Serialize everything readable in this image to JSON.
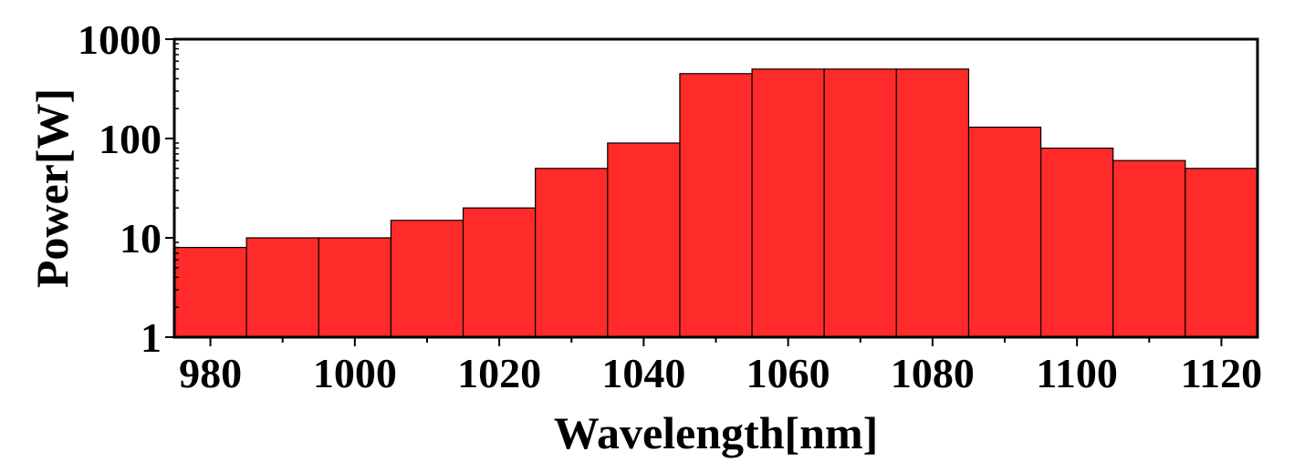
{
  "chart_data": {
    "type": "bar",
    "xlabel": "Wavelength[nm]",
    "ylabel": "Power[W]",
    "y_scale": "log",
    "ylim": [
      1,
      1000
    ],
    "xlim": [
      975,
      1125
    ],
    "bin_width": 10,
    "x": [
      980,
      990,
      1000,
      1010,
      1020,
      1030,
      1040,
      1050,
      1060,
      1070,
      1080,
      1090,
      1100,
      1110,
      1120
    ],
    "values": [
      8,
      10,
      10,
      15,
      20,
      50,
      90,
      450,
      500,
      500,
      500,
      130,
      80,
      60,
      50
    ],
    "x_ticks": [
      980,
      1000,
      1020,
      1040,
      1060,
      1080,
      1100,
      1120
    ],
    "x_tick_labels": [
      "980",
      "1000",
      "1020",
      "1040",
      "1060",
      "1080",
      "1100",
      "1120"
    ],
    "y_ticks": [
      1,
      10,
      100,
      1000
    ],
    "y_tick_labels": [
      "1",
      "10",
      "100",
      "1000"
    ],
    "bar_color": "#ff2a2a",
    "grid": false,
    "legend": "none"
  }
}
